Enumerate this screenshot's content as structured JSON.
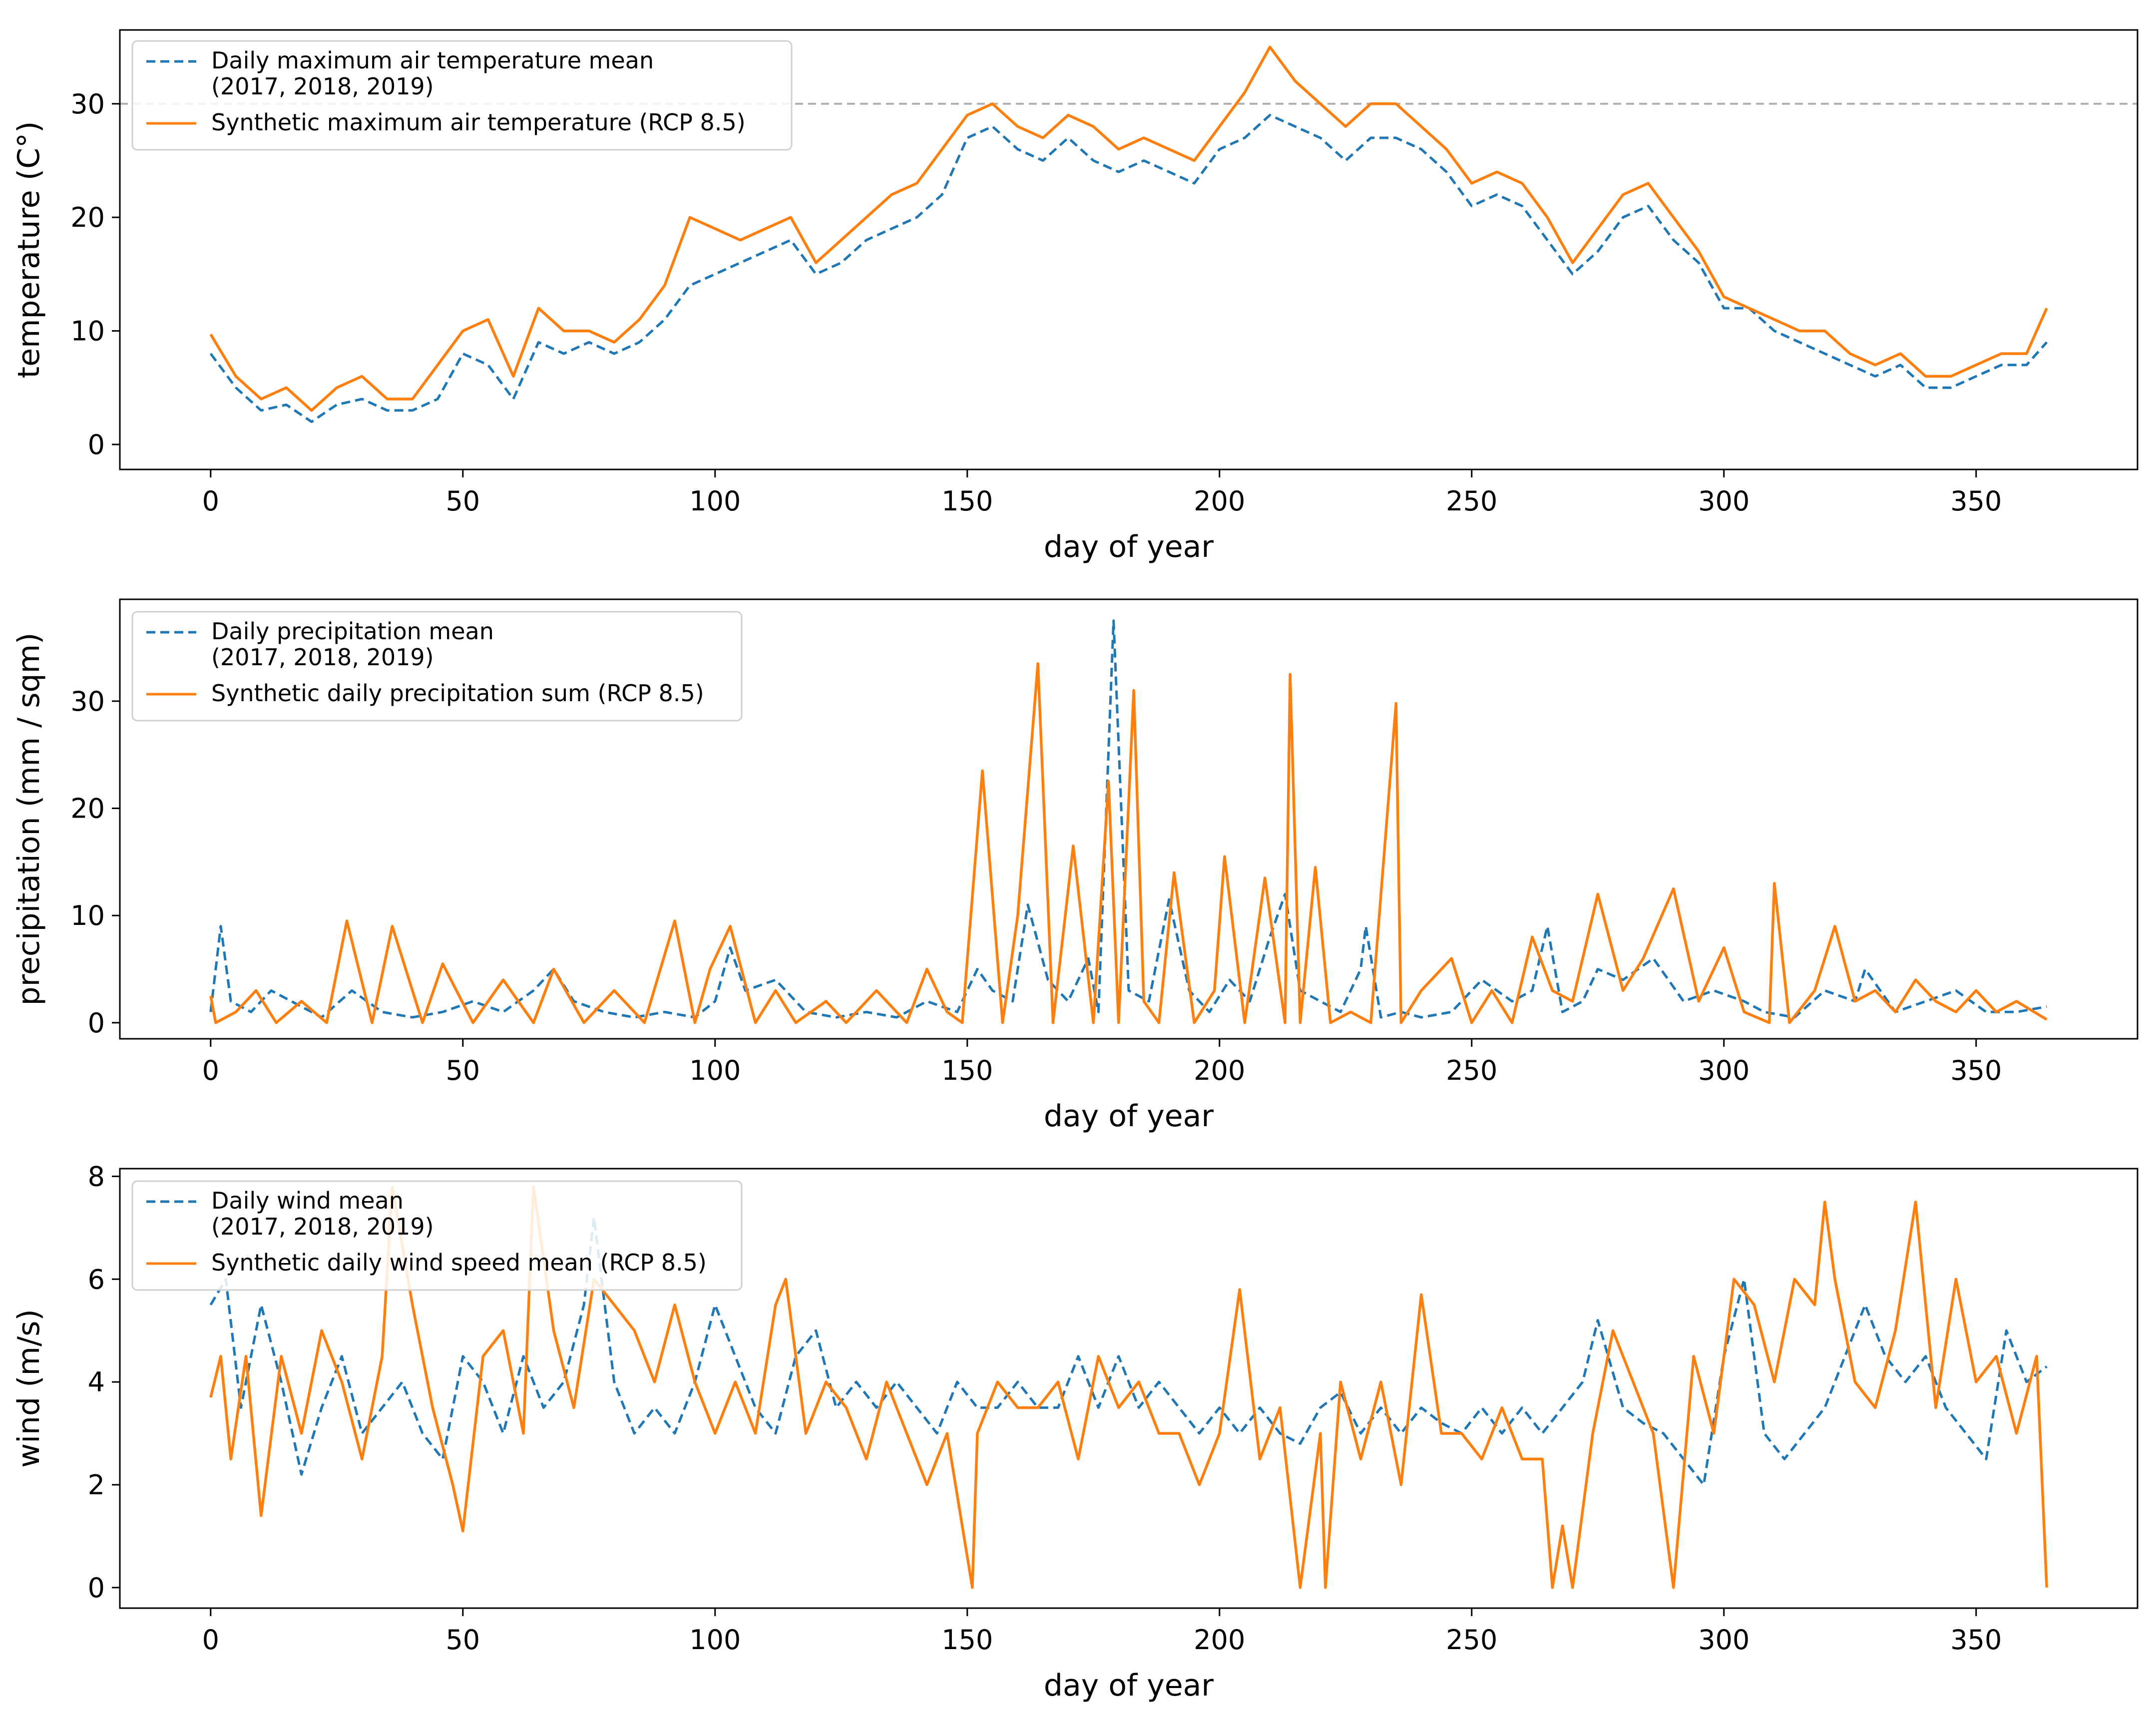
{
  "colors": {
    "observed": "#1f77b4",
    "synthetic": "#ff7f0e",
    "reference_line": "#b0b0b0"
  },
  "chart_data": [
    {
      "type": "line",
      "xlabel": "day of year",
      "ylabel": "temperature (C°)",
      "xlim": [
        -18,
        382
      ],
      "ylim": [
        -2.2,
        36.5
      ],
      "xticks": [
        0,
        50,
        100,
        150,
        200,
        250,
        300,
        350
      ],
      "yticks": [
        0,
        10,
        20,
        30
      ],
      "reference_line_y": 30,
      "legend_position": "top-left",
      "series": [
        {
          "name_lines": [
            "Daily maximum air temperature mean",
            " (2017, 2018, 2019)"
          ],
          "style": "dashed",
          "x": [
            0,
            5,
            10,
            15,
            20,
            25,
            30,
            35,
            40,
            45,
            50,
            55,
            60,
            65,
            70,
            75,
            80,
            85,
            90,
            95,
            100,
            105,
            110,
            115,
            120,
            125,
            130,
            135,
            140,
            145,
            150,
            155,
            160,
            165,
            170,
            175,
            180,
            185,
            190,
            195,
            200,
            205,
            210,
            215,
            220,
            225,
            230,
            235,
            240,
            245,
            250,
            255,
            260,
            265,
            270,
            275,
            280,
            285,
            290,
            295,
            300,
            305,
            310,
            315,
            320,
            325,
            330,
            335,
            340,
            345,
            350,
            355,
            360,
            364
          ],
          "y": [
            8,
            5,
            3,
            3.5,
            2,
            3.5,
            4,
            3,
            3,
            4,
            8,
            7,
            4,
            9,
            8,
            9,
            8,
            9,
            11,
            14,
            15,
            16,
            17,
            18,
            15,
            16,
            18,
            19,
            20,
            22,
            27,
            28,
            26,
            25,
            27,
            25,
            24,
            25,
            24,
            23,
            26,
            27,
            29,
            28,
            27,
            25,
            27,
            27,
            26,
            24,
            21,
            22,
            21,
            18,
            15,
            17,
            20,
            21,
            18,
            16,
            12,
            12,
            10,
            9,
            8,
            7,
            6,
            7,
            5,
            5,
            6,
            7,
            7,
            9
          ]
        },
        {
          "name_lines": [
            "Synthetic maximum air temperature (RCP 8.5)"
          ],
          "style": "solid",
          "x": [
            0,
            5,
            10,
            15,
            20,
            25,
            30,
            35,
            40,
            45,
            50,
            55,
            60,
            65,
            70,
            75,
            80,
            85,
            90,
            95,
            100,
            105,
            110,
            115,
            120,
            125,
            130,
            135,
            140,
            145,
            150,
            155,
            160,
            165,
            170,
            175,
            180,
            185,
            190,
            195,
            200,
            205,
            210,
            215,
            220,
            225,
            230,
            235,
            240,
            245,
            250,
            255,
            260,
            265,
            270,
            275,
            280,
            285,
            290,
            295,
            300,
            305,
            310,
            315,
            320,
            325,
            330,
            335,
            340,
            345,
            350,
            355,
            360,
            364
          ],
          "y": [
            9.7,
            6,
            4,
            5,
            3,
            5,
            6,
            4,
            4,
            7,
            10,
            11,
            6,
            12,
            10,
            10,
            9,
            11,
            14,
            20,
            19,
            18,
            19,
            20,
            16,
            18,
            20,
            22,
            23,
            26,
            29,
            30,
            28,
            27,
            29,
            28,
            26,
            27,
            26,
            25,
            28,
            31,
            35,
            32,
            30,
            28,
            30,
            30,
            28,
            26,
            23,
            24,
            23,
            20,
            16,
            19,
            22,
            23,
            20,
            17,
            13,
            12,
            11,
            10,
            10,
            8,
            7,
            8,
            6,
            6,
            7,
            8,
            8,
            12
          ]
        }
      ]
    },
    {
      "type": "line",
      "xlabel": "day of year",
      "ylabel": "precipitation (mm / sqm)",
      "xlim": [
        -18,
        382
      ],
      "ylim": [
        -1.5,
        39.5
      ],
      "xticks": [
        0,
        50,
        100,
        150,
        200,
        250,
        300,
        350
      ],
      "yticks": [
        0,
        10,
        20,
        30
      ],
      "legend_position": "top-left",
      "series": [
        {
          "name_lines": [
            "Daily precipitation mean",
            " (2017, 2018, 2019)"
          ],
          "style": "dashed",
          "x": [
            0,
            2,
            4,
            8,
            12,
            16,
            22,
            28,
            34,
            40,
            46,
            52,
            58,
            64,
            68,
            72,
            78,
            84,
            90,
            96,
            100,
            103,
            106,
            112,
            118,
            124,
            130,
            136,
            142,
            148,
            152,
            155,
            159,
            162,
            166,
            170,
            174,
            176,
            179,
            182,
            186,
            190,
            194,
            198,
            202,
            206,
            210,
            213,
            216,
            220,
            224,
            228,
            229,
            232,
            236,
            240,
            246,
            252,
            258,
            262,
            265,
            268,
            272,
            275,
            280,
            286,
            292,
            298,
            304,
            308,
            314,
            320,
            326,
            328,
            334,
            340,
            346,
            352,
            358,
            364
          ],
          "y": [
            1,
            9,
            2,
            1,
            3,
            2,
            0.5,
            3,
            1,
            0.5,
            1,
            2,
            1,
            3,
            5,
            2,
            1,
            0.5,
            1,
            0.5,
            2,
            7,
            3,
            4,
            1,
            0.5,
            1,
            0.5,
            2,
            1,
            5,
            3,
            2,
            11,
            4,
            2,
            6,
            1,
            37.5,
            3,
            2,
            11.5,
            3,
            1,
            4,
            2,
            8,
            12,
            3,
            2,
            1,
            5,
            9,
            0.5,
            1,
            0.5,
            1,
            4,
            2,
            3,
            9,
            1,
            2,
            5,
            4,
            6,
            2,
            3,
            2,
            1,
            0.5,
            3,
            2,
            5,
            1,
            2,
            3,
            1,
            1,
            1.5
          ]
        },
        {
          "name_lines": [
            "Synthetic daily precipitation sum (RCP 8.5)"
          ],
          "style": "solid",
          "x": [
            0,
            1,
            5,
            9,
            13,
            18,
            23,
            27,
            32,
            36,
            42,
            46,
            52,
            58,
            64,
            68,
            74,
            80,
            86,
            92,
            96,
            99,
            103,
            108,
            112,
            116,
            122,
            126,
            132,
            138,
            142,
            146,
            149,
            153,
            157,
            160,
            164,
            167,
            171,
            175,
            178,
            180,
            183,
            185,
            188,
            191,
            195,
            199,
            201,
            205,
            209,
            213,
            214,
            216,
            219,
            222,
            226,
            230,
            235,
            236,
            240,
            246,
            250,
            254,
            258,
            262,
            266,
            270,
            275,
            280,
            284,
            290,
            295,
            300,
            304,
            309,
            310,
            313,
            318,
            322,
            326,
            330,
            334,
            338,
            342,
            346,
            350,
            354,
            358,
            364
          ],
          "y": [
            2.5,
            0,
            1,
            3,
            0,
            2,
            0,
            9.5,
            0,
            9,
            0,
            5.5,
            0,
            4,
            0,
            5,
            0,
            3,
            0,
            9.5,
            0,
            5,
            9,
            0,
            3,
            0,
            2,
            0,
            3,
            0,
            5,
            1,
            0,
            23.5,
            0,
            10,
            33.5,
            0,
            16.5,
            0,
            22.5,
            0,
            31,
            2,
            0,
            14,
            0,
            3,
            15.5,
            0,
            13.5,
            0,
            32.5,
            0,
            14.5,
            0,
            1,
            0,
            29.8,
            0,
            3,
            6,
            0,
            3,
            0,
            8,
            3,
            2,
            12,
            3,
            6,
            12.5,
            2,
            7,
            1,
            0,
            13,
            0,
            3,
            9,
            2,
            3,
            1,
            4,
            2,
            1,
            3,
            1,
            2,
            0.3
          ]
        }
      ]
    },
    {
      "type": "line",
      "xlabel": "day of year",
      "ylabel": "wind (m/s)",
      "xlim": [
        -18,
        382
      ],
      "ylim": [
        -0.4,
        8.15
      ],
      "xticks": [
        0,
        50,
        100,
        150,
        200,
        250,
        300,
        350
      ],
      "yticks": [
        0,
        2,
        4,
        6,
        8
      ],
      "legend_position": "top-left",
      "series": [
        {
          "name_lines": [
            "Daily wind mean",
            " (2017, 2018, 2019)"
          ],
          "style": "dashed",
          "x": [
            0,
            3,
            6,
            10,
            14,
            18,
            22,
            26,
            30,
            34,
            38,
            42,
            46,
            50,
            54,
            58,
            62,
            66,
            70,
            74,
            76,
            80,
            84,
            88,
            92,
            96,
            100,
            104,
            108,
            112,
            116,
            120,
            124,
            128,
            132,
            136,
            140,
            144,
            148,
            152,
            156,
            160,
            164,
            168,
            172,
            176,
            180,
            184,
            188,
            192,
            196,
            200,
            204,
            208,
            212,
            216,
            220,
            224,
            228,
            232,
            236,
            240,
            244,
            248,
            252,
            256,
            260,
            264,
            268,
            272,
            275,
            280,
            284,
            288,
            292,
            296,
            300,
            304,
            308,
            312,
            316,
            320,
            324,
            328,
            332,
            336,
            340,
            344,
            348,
            352,
            356,
            360,
            364
          ],
          "y": [
            5.5,
            6,
            3.5,
            5.5,
            4,
            2.2,
            3.5,
            4.5,
            3,
            3.5,
            4,
            3,
            2.5,
            4.5,
            4,
            3,
            4.5,
            3.5,
            4,
            5.5,
            7.2,
            4,
            3,
            3.5,
            3,
            4,
            5.5,
            4.5,
            3.5,
            3,
            4.5,
            5,
            3.5,
            4,
            3.5,
            4,
            3.5,
            3,
            4,
            3.5,
            3.5,
            4,
            3.5,
            3.5,
            4.5,
            3.5,
            4.5,
            3.5,
            4,
            3.5,
            3,
            3.5,
            3,
            3.5,
            3,
            2.8,
            3.5,
            3.8,
            3,
            3.5,
            3,
            3.5,
            3.2,
            3,
            3.5,
            3,
            3.5,
            3,
            3.5,
            4,
            5.2,
            3.5,
            3.2,
            3,
            2.5,
            2,
            4.5,
            6,
            3,
            2.5,
            3,
            3.5,
            4.5,
            5.5,
            4.5,
            4,
            4.5,
            3.5,
            3,
            2.5,
            5,
            4,
            4.3
          ]
        },
        {
          "name_lines": [
            "Synthetic daily wind speed mean (RCP 8.5)"
          ],
          "style": "solid",
          "x": [
            0,
            2,
            4,
            7,
            10,
            14,
            18,
            22,
            26,
            30,
            34,
            36,
            40,
            44,
            48,
            50,
            54,
            58,
            62,
            64,
            68,
            72,
            76,
            80,
            84,
            88,
            92,
            96,
            100,
            104,
            108,
            112,
            114,
            118,
            122,
            126,
            130,
            134,
            138,
            142,
            146,
            151,
            152,
            156,
            160,
            164,
            168,
            172,
            176,
            180,
            184,
            188,
            192,
            196,
            200,
            204,
            208,
            212,
            216,
            220,
            221,
            224,
            228,
            232,
            236,
            240,
            244,
            248,
            252,
            256,
            260,
            264,
            266,
            268,
            270,
            274,
            278,
            282,
            286,
            290,
            294,
            298,
            302,
            306,
            310,
            314,
            318,
            320,
            322,
            326,
            330,
            334,
            338,
            342,
            346,
            350,
            354,
            358,
            362,
            364
          ],
          "y": [
            3.7,
            4.5,
            2.5,
            4.5,
            1.4,
            4.5,
            3,
            5,
            4,
            2.5,
            4.5,
            7.8,
            5.5,
            3.5,
            2,
            1.1,
            4.5,
            5,
            3,
            7.8,
            5,
            3.5,
            6,
            5.5,
            5,
            4,
            5.5,
            4,
            3,
            4,
            3,
            5.5,
            6,
            3,
            4,
            3.5,
            2.5,
            4,
            3,
            2,
            3,
            0,
            3,
            4,
            3.5,
            3.5,
            4,
            2.5,
            4.5,
            3.5,
            4,
            3,
            3,
            2,
            3,
            5.8,
            2.5,
            3.5,
            0,
            3,
            0,
            4,
            2.5,
            4,
            2,
            5.7,
            3,
            3,
            2.5,
            3.5,
            2.5,
            2.5,
            0,
            1.2,
            0,
            3,
            5,
            4,
            3,
            0,
            4.5,
            3,
            6,
            5.5,
            4,
            6,
            5.5,
            7.5,
            6,
            4,
            3.5,
            5,
            7.5,
            3.5,
            6,
            4,
            4.5,
            3,
            4.5,
            0
          ]
        }
      ]
    }
  ]
}
